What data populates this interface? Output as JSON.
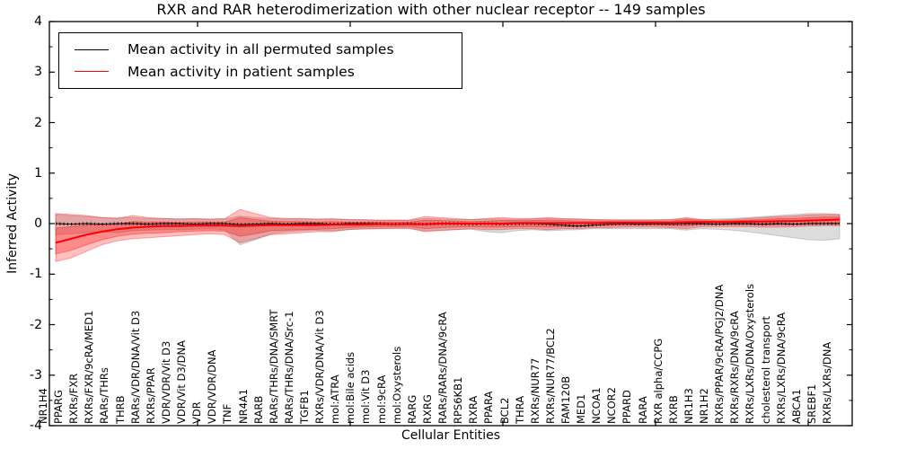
{
  "title": "RXR and RAR heterodimerization with other nuclear receptor -- 149 samples",
  "axes": {
    "ylabel": "Inferred Activity",
    "xlabel": "Cellular Entities",
    "ylim": [
      -4,
      4
    ],
    "ytick_values": [
      4,
      3,
      2,
      1,
      0,
      -1,
      -2,
      -3,
      -4
    ],
    "ytick_labels": [
      "4",
      "3",
      "2",
      "1",
      "0",
      "-1",
      "-2",
      "-3",
      "-4"
    ],
    "grid": "off"
  },
  "legend": {
    "position": "upper left",
    "entries": [
      {
        "label": "Mean activity in all permuted samples",
        "color": "#000000"
      },
      {
        "label": "Mean activity in patient samples",
        "color": "#ff0000"
      }
    ]
  },
  "chart_data": {
    "type": "line",
    "title": "RXR and RAR heterodimerization with other nuclear receptor -- 149 samples",
    "xlabel": "Cellular Entities",
    "ylabel": "Inferred Activity",
    "ylim": [
      -4,
      4
    ],
    "sample_count": 149,
    "categories": [
      "NR1H4",
      "PPARG",
      "RXRs/FXR",
      "RXRs/FXR/9cRA/MED1",
      "RARs/THRs",
      "THRB",
      "RARs/VDR/DNA/Vit D3",
      "RXRs/PPAR",
      "VDR/VDR/Vit D3",
      "VDR/Vit D3/DNA",
      "VDR",
      "VDR/VDR/DNA",
      "TNF",
      "NR4A1",
      "RARB",
      "RARs/THRs/DNA/SMRT",
      "RARs/THRs/DNA/Src-1",
      "TGFB1",
      "RXRs/VDR/DNA/Vit D3",
      "mol:ATRA",
      "mol:Bile acids",
      "mol:Vit D3",
      "mol:9cRA",
      "mol:Oxysterols",
      "RARG",
      "RXRG",
      "RARs/RARs/DNA/9cRA",
      "RPS6KB1",
      "RXRA",
      "PPARA",
      "BCL2",
      "THRA",
      "RXRs/NUR77",
      "RXRs/NUR77/BCL2",
      "FAM120B",
      "MED1",
      "NCOA1",
      "NCOR2",
      "PPARD",
      "RARA",
      "RXR alpha/CCPG",
      "RXRB",
      "NR1H3",
      "NR1H2",
      "RXRs/PPAR/9cRA/PGJ2/DNA",
      "RXRs/RXRs/DNA/9cRA",
      "RXRs/LXRs/DNA/Oxysterols",
      "cholesterol transport",
      "RXRs/LXRs/DNA/9cRA",
      "ABCA1",
      "SREBF1",
      "RXRs/LXRs/DNA"
    ],
    "series": [
      {
        "name": "Mean activity in all permuted samples",
        "color": "#000000",
        "values": [
          0.0,
          -0.01,
          0.0,
          -0.01,
          0.0,
          0.0,
          -0.01,
          0.0,
          0.0,
          -0.01,
          0.0,
          0.0,
          -0.02,
          -0.01,
          0.0,
          -0.01,
          0.0,
          0.0,
          -0.01,
          0.0,
          0.0,
          0.0,
          -0.01,
          0.0,
          -0.01,
          0.0,
          0.0,
          -0.01,
          0.0,
          -0.01,
          0.0,
          0.0,
          -0.01,
          -0.03,
          -0.05,
          -0.03,
          -0.01,
          0.0,
          -0.01,
          0.0,
          -0.01,
          0.0,
          0.0,
          -0.01,
          0.0,
          0.0,
          -0.01,
          0.0,
          -0.01,
          0.0,
          0.0,
          0.0
        ]
      },
      {
        "name": "Mean activity in patient samples",
        "color": "#ff0000",
        "values": [
          -0.38,
          -0.3,
          -0.22,
          -0.16,
          -0.11,
          -0.08,
          -0.06,
          -0.05,
          -0.05,
          -0.04,
          -0.04,
          -0.04,
          -0.05,
          -0.04,
          -0.03,
          -0.03,
          -0.03,
          -0.03,
          -0.02,
          -0.02,
          -0.02,
          -0.01,
          -0.01,
          -0.01,
          -0.01,
          0.0,
          0.0,
          0.0,
          0.0,
          0.0,
          0.01,
          0.01,
          0.01,
          0.01,
          0.01,
          0.01,
          0.02,
          0.02,
          0.02,
          0.02,
          0.02,
          0.03,
          0.03,
          0.03,
          0.03,
          0.04,
          0.04,
          0.05,
          0.05,
          0.06,
          0.07,
          0.08
        ]
      }
    ],
    "bands": [
      {
        "name": "permuted-samples-spread",
        "color": "#8c8c8c",
        "opacity": 0.3,
        "hi": [
          0.18,
          0.16,
          0.14,
          0.12,
          0.12,
          0.12,
          0.1,
          0.1,
          0.09,
          0.09,
          0.08,
          0.09,
          0.15,
          0.12,
          0.1,
          0.09,
          0.09,
          0.08,
          0.08,
          0.08,
          0.07,
          0.07,
          0.07,
          0.07,
          0.1,
          0.09,
          0.08,
          0.08,
          0.09,
          0.09,
          0.08,
          0.09,
          0.1,
          0.09,
          0.09,
          0.08,
          0.08,
          0.08,
          0.08,
          0.08,
          0.08,
          0.1,
          0.08,
          0.09,
          0.1,
          0.12,
          0.14,
          0.16,
          0.18,
          0.2,
          0.2,
          0.18
        ],
        "lo": [
          -0.22,
          -0.2,
          -0.18,
          -0.16,
          -0.18,
          -0.14,
          -0.13,
          -0.12,
          -0.12,
          -0.11,
          -0.1,
          -0.12,
          -0.42,
          -0.32,
          -0.2,
          -0.16,
          -0.14,
          -0.13,
          -0.14,
          -0.12,
          -0.11,
          -0.1,
          -0.1,
          -0.1,
          -0.14,
          -0.13,
          -0.12,
          -0.11,
          -0.16,
          -0.18,
          -0.14,
          -0.12,
          -0.14,
          -0.13,
          -0.12,
          -0.1,
          -0.1,
          -0.1,
          -0.1,
          -0.1,
          -0.1,
          -0.13,
          -0.1,
          -0.11,
          -0.13,
          -0.16,
          -0.2,
          -0.24,
          -0.28,
          -0.32,
          -0.33,
          -0.3
        ]
      },
      {
        "name": "patient-samples-spread-outer",
        "color": "#ff0000",
        "opacity": 0.25,
        "hi": [
          0.2,
          0.18,
          0.16,
          0.12,
          0.1,
          0.16,
          0.12,
          0.1,
          0.09,
          0.1,
          0.09,
          0.1,
          0.28,
          0.2,
          0.12,
          0.1,
          0.1,
          0.09,
          0.1,
          0.08,
          0.08,
          0.07,
          0.07,
          0.07,
          0.14,
          0.12,
          0.1,
          0.08,
          0.1,
          0.12,
          0.1,
          0.1,
          0.12,
          0.1,
          0.09,
          0.08,
          0.07,
          0.07,
          0.07,
          0.07,
          0.08,
          0.12,
          0.08,
          0.07,
          0.08,
          0.1,
          0.12,
          0.14,
          0.15,
          0.17,
          0.18,
          0.18
        ],
        "lo": [
          -0.75,
          -0.68,
          -0.55,
          -0.42,
          -0.34,
          -0.3,
          -0.28,
          -0.26,
          -0.24,
          -0.22,
          -0.2,
          -0.22,
          -0.38,
          -0.3,
          -0.22,
          -0.2,
          -0.18,
          -0.16,
          -0.16,
          -0.12,
          -0.1,
          -0.1,
          -0.09,
          -0.09,
          -0.16,
          -0.14,
          -0.12,
          -0.1,
          -0.12,
          -0.12,
          -0.1,
          -0.1,
          -0.12,
          -0.1,
          -0.1,
          -0.08,
          -0.08,
          -0.07,
          -0.07,
          -0.07,
          -0.08,
          -0.1,
          -0.06,
          -0.06,
          -0.06,
          -0.06,
          -0.07,
          -0.07,
          -0.06,
          -0.05,
          -0.04,
          -0.04
        ]
      },
      {
        "name": "patient-samples-spread-inner",
        "color": "#ff0000",
        "opacity": 0.28,
        "hi": [
          -0.09,
          -0.06,
          -0.03,
          -0.02,
          -0.01,
          0.04,
          0.03,
          0.03,
          0.02,
          0.03,
          0.03,
          0.03,
          0.12,
          0.08,
          0.05,
          0.04,
          0.04,
          0.03,
          0.04,
          0.03,
          0.03,
          0.03,
          0.03,
          0.03,
          0.07,
          0.06,
          0.05,
          0.04,
          0.05,
          0.06,
          0.06,
          0.06,
          0.07,
          0.06,
          0.05,
          0.05,
          0.05,
          0.05,
          0.05,
          0.05,
          0.05,
          0.08,
          0.06,
          0.05,
          0.06,
          0.07,
          0.08,
          0.1,
          0.1,
          0.12,
          0.13,
          0.13
        ],
        "lo": [
          -0.6,
          -0.53,
          -0.42,
          -0.32,
          -0.25,
          -0.21,
          -0.19,
          -0.18,
          -0.16,
          -0.15,
          -0.14,
          -0.15,
          -0.25,
          -0.2,
          -0.14,
          -0.13,
          -0.12,
          -0.11,
          -0.1,
          -0.08,
          -0.07,
          -0.06,
          -0.06,
          -0.06,
          -0.1,
          -0.08,
          -0.07,
          -0.06,
          -0.07,
          -0.07,
          -0.06,
          -0.06,
          -0.07,
          -0.06,
          -0.06,
          -0.04,
          -0.04,
          -0.03,
          -0.03,
          -0.03,
          -0.04,
          -0.05,
          -0.02,
          -0.02,
          -0.02,
          -0.02,
          -0.03,
          -0.02,
          -0.02,
          -0.01,
          0.0,
          0.01
        ]
      }
    ]
  }
}
